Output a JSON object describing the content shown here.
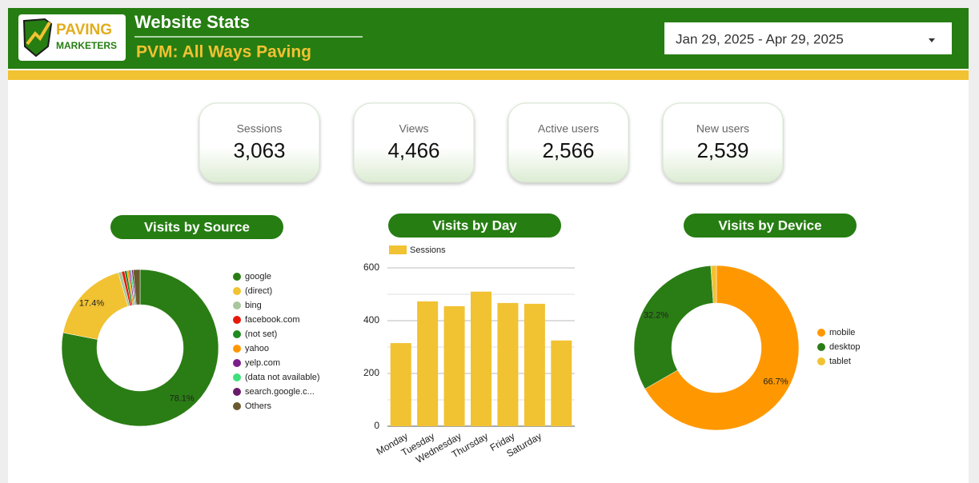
{
  "header": {
    "logo_top": "PAVING",
    "logo_bottom": "MARKETERS",
    "title": "Website Stats",
    "subtitle": "PVM: All Ways Paving",
    "date_range": "Jan 29, 2025 - Apr 29, 2025"
  },
  "kpis": [
    {
      "label": "Sessions",
      "value": "3,063"
    },
    {
      "label": "Views",
      "value": "4,466"
    },
    {
      "label": "Active users",
      "value": "2,566"
    },
    {
      "label": "New users",
      "value": "2,539"
    }
  ],
  "chart_data": [
    {
      "type": "pie",
      "donut": true,
      "title": "Visits by Source",
      "categories": [
        "google",
        "(direct)",
        "bing",
        "facebook.com",
        "(not set)",
        "yahoo",
        "yelp.com",
        "(data not available)",
        "search.google.c...",
        "Others"
      ],
      "values": [
        78.1,
        17.4,
        0.7,
        0.6,
        0.5,
        0.4,
        0.3,
        0.3,
        0.3,
        1.4
      ],
      "value_labels": [
        "78.1%",
        "17.4%",
        null,
        null,
        null,
        null,
        null,
        null,
        null,
        null
      ],
      "colors": [
        "#2a7d14",
        "#f1c232",
        "#a8c79c",
        "#e8170c",
        "#1f8a1f",
        "#ff9800",
        "#7b1e8c",
        "#3ee07a",
        "#6a1a6a",
        "#6b5a2e"
      ]
    },
    {
      "type": "bar",
      "title": "Visits by Day",
      "categories": [
        "Monday",
        "Tuesday",
        "Wednesday",
        "Thursday",
        "Friday",
        "Saturday",
        null
      ],
      "series": [
        {
          "name": "Sessions",
          "color": "#f1c232",
          "values": [
            315,
            473,
            455,
            510,
            467,
            464,
            325
          ]
        }
      ],
      "ylim": [
        0,
        600
      ],
      "yticks": [
        0,
        200,
        400,
        600
      ],
      "minor_yticks": [
        100,
        300,
        500
      ],
      "grid": true
    },
    {
      "type": "pie",
      "donut": true,
      "title": "Visits by Device",
      "categories": [
        "mobile",
        "desktop",
        "tablet"
      ],
      "values": [
        66.7,
        32.2,
        1.1
      ],
      "value_labels": [
        "66.7%",
        "32.2%",
        null
      ],
      "colors": [
        "#ff9800",
        "#2a7d14",
        "#f1c232"
      ]
    }
  ]
}
